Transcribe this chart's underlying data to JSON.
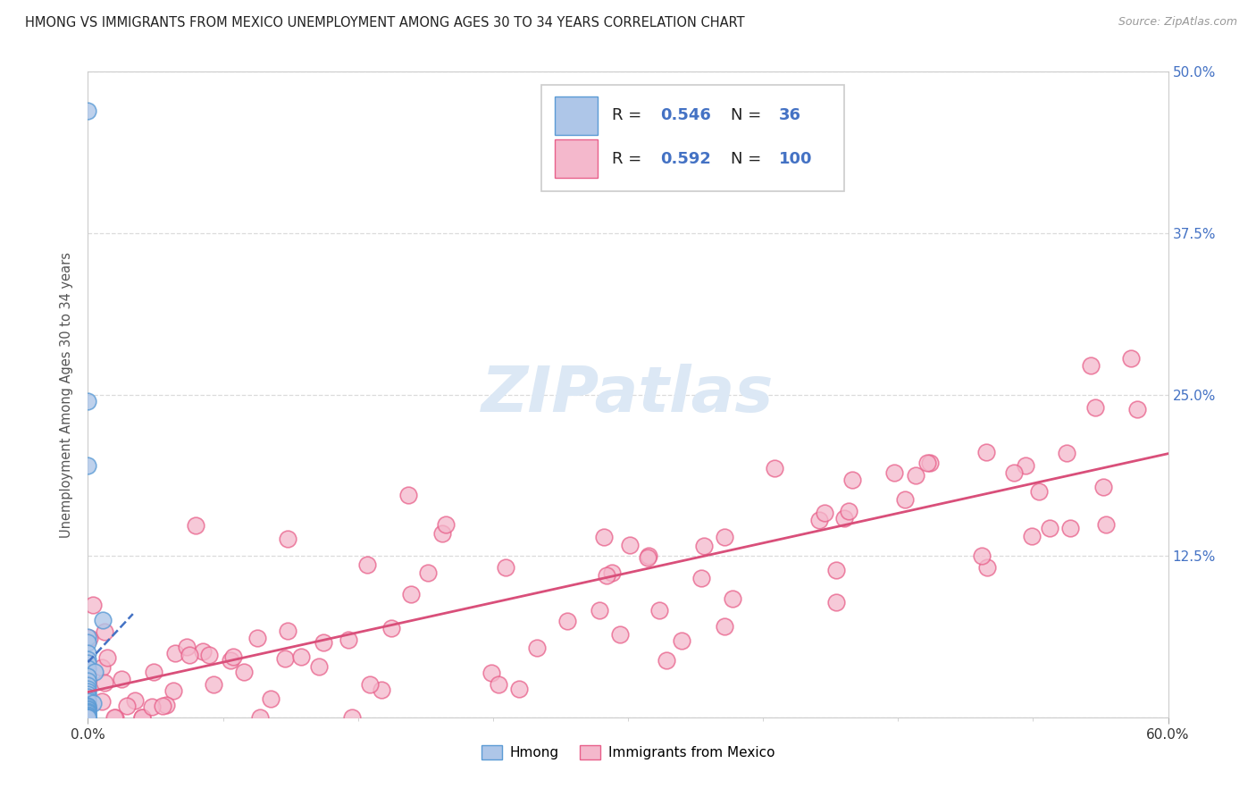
{
  "title": "HMONG VS IMMIGRANTS FROM MEXICO UNEMPLOYMENT AMONG AGES 30 TO 34 YEARS CORRELATION CHART",
  "source": "Source: ZipAtlas.com",
  "ylabel": "Unemployment Among Ages 30 to 34 years",
  "xlim": [
    0.0,
    0.6
  ],
  "ylim": [
    0.0,
    0.5
  ],
  "hmong_R": 0.546,
  "hmong_N": 36,
  "mexico_R": 0.592,
  "mexico_N": 100,
  "hmong_color": "#aec6e8",
  "hmong_edge_color": "#5b9bd5",
  "mexico_color": "#f4b8cc",
  "mexico_edge_color": "#e8608a",
  "hmong_line_color": "#4472c4",
  "mexico_line_color": "#d94f7a",
  "tick_label_color": "#4472c4",
  "ylabel_color": "#555555",
  "title_color": "#222222",
  "source_color": "#999999",
  "grid_color": "#d8d8d8",
  "watermark_color": "#dce8f5"
}
